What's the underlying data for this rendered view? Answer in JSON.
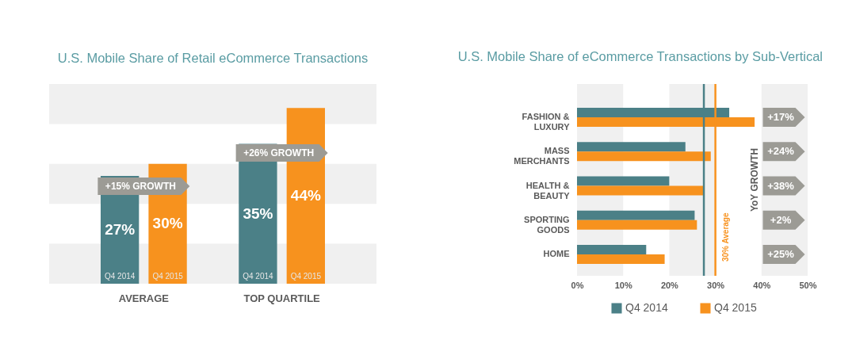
{
  "chart_data": [
    {
      "type": "bar",
      "title": "U.S. Mobile Share of Retail eCommerce Transactions",
      "categories": [
        "AVERAGE",
        "TOP QUARTILE"
      ],
      "series": [
        {
          "name": "Q4 2014",
          "color": "#4b8087",
          "values": [
            27,
            35
          ],
          "value_labels": [
            "27%",
            "35%"
          ]
        },
        {
          "name": "Q4 2015",
          "color": "#f7921e",
          "values": [
            30,
            44
          ],
          "value_labels": [
            "30%",
            "44%"
          ]
        }
      ],
      "ylim": [
        0,
        50
      ],
      "bands": [
        {
          "axis": "y",
          "from": 0,
          "to": 10,
          "color": "#f0f0f0"
        },
        {
          "axis": "y",
          "from": 20,
          "to": 30,
          "color": "#f0f0f0"
        },
        {
          "axis": "y",
          "from": 40,
          "to": 50,
          "color": "#f0f0f0"
        }
      ],
      "annotations": [
        "+15% GROWTH",
        "+26% GROWTH"
      ],
      "tick_labels": "x",
      "legend": false,
      "grid": false
    },
    {
      "type": "bar",
      "orientation": "horizontal",
      "title": "U.S. Mobile Share of eCommerce Transactions by Sub-Vertical",
      "categories": [
        "FASHION & LUXURY",
        "MASS MERCHANTS",
        "HEALTH & BEAUTY",
        "SPORTING GOODS",
        "HOME"
      ],
      "series": [
        {
          "name": "Q4 2014",
          "color": "#4b8087",
          "values": [
            33,
            23.5,
            20,
            25.5,
            15
          ]
        },
        {
          "name": "Q4 2015",
          "color": "#f7921e",
          "values": [
            38.5,
            29,
            27.5,
            26,
            19
          ]
        }
      ],
      "xlim": [
        0,
        50
      ],
      "xticks": [
        {
          "value": 0,
          "label": "0%"
        },
        {
          "value": 10,
          "label": "10%"
        },
        {
          "value": 20,
          "label": "20%"
        },
        {
          "value": 30,
          "label": "30%"
        },
        {
          "value": 40,
          "label": "40%"
        },
        {
          "value": 50,
          "label": "50%"
        }
      ],
      "ref_lines": [
        {
          "axis": "x",
          "value": 27.5,
          "color": "#4b8087"
        },
        {
          "axis": "x",
          "value": 30,
          "label": "30% Average",
          "color": "#f7921e"
        }
      ],
      "bands": [
        {
          "axis": "x",
          "from": 0,
          "to": 10,
          "color": "#f0f0f0"
        },
        {
          "axis": "x",
          "from": 20,
          "to": 30,
          "color": "#f0f0f0"
        },
        {
          "axis": "x",
          "from": 40,
          "to": 50,
          "color": "#f0f0f0"
        }
      ],
      "annotations": [
        "YoY GROWTH",
        "+17%",
        "+24%",
        "+38%",
        "+2%",
        "+25%"
      ],
      "legend": "bottom",
      "grid": false
    }
  ]
}
